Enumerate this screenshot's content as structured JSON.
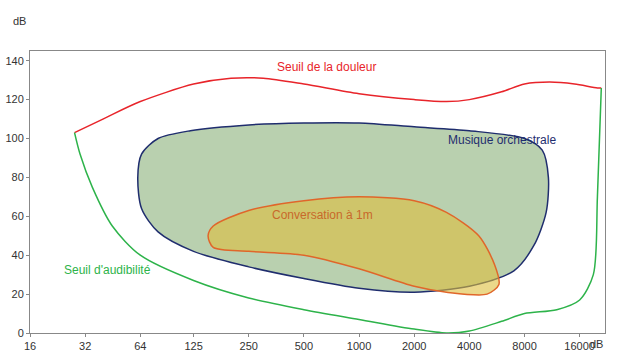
{
  "chart_data": {
    "type": "line",
    "log": "x",
    "grid": false,
    "x_label": "dB",
    "y_label": "dB",
    "xlim": [
      16,
      22000
    ],
    "ylim": [
      0,
      145
    ],
    "xticks": [
      16,
      32,
      64,
      125,
      250,
      500,
      1000,
      2000,
      4000,
      8000,
      16000
    ],
    "yticks": [
      0,
      20,
      40,
      60,
      80,
      100,
      120,
      140
    ],
    "series": [
      {
        "name": "Seuil de la douleur",
        "type": "line",
        "color": "#e8242a",
        "x": [
          28,
          40,
          64,
          125,
          200,
          300,
          500,
          1000,
          2000,
          3000,
          4000,
          6000,
          8000,
          11000,
          15000,
          20000,
          21000
        ],
        "values": [
          103,
          110,
          119,
          128,
          131,
          131,
          128,
          123,
          120,
          119,
          120,
          124,
          128,
          129,
          128,
          126,
          126
        ]
      },
      {
        "name": "Seuil d'audibilité",
        "type": "line",
        "color": "#2db34a",
        "x": [
          28,
          30,
          35,
          45,
          64,
          125,
          250,
          500,
          1000,
          2000,
          3000,
          4000,
          6000,
          8000,
          12000,
          16000,
          19000,
          20000,
          21000
        ],
        "values": [
          103,
          92,
          75,
          55,
          40,
          27,
          18,
          12,
          7,
          2,
          0,
          1,
          6,
          10,
          12,
          17,
          30,
          70,
          126
        ]
      },
      {
        "name": "Musique orchestrale",
        "type": "area",
        "color": "#1f2d6e",
        "x": [
          62,
          65,
          80,
          120,
          250,
          500,
          1000,
          2000,
          4000,
          8000,
          10000,
          10800,
          10500,
          9000,
          7000,
          4000,
          2000,
          1000,
          500,
          250,
          125,
          80,
          65,
          62
        ],
        "values": [
          80,
          92,
          100,
          104,
          107,
          108,
          108,
          106,
          104,
          100,
          94,
          80,
          62,
          45,
          32,
          24,
          21,
          23,
          28,
          34,
          42,
          52,
          64,
          80
        ]
      },
      {
        "name": "Conversation à 1m",
        "type": "area",
        "color": "#e0662a",
        "x": [
          150,
          160,
          250,
          500,
          1000,
          2000,
          3000,
          4500,
          5500,
          5800,
          5000,
          3000,
          2000,
          1000,
          500,
          250,
          160,
          150
        ],
        "values": [
          50,
          55,
          63,
          68,
          70,
          68,
          62,
          50,
          35,
          25,
          20,
          21,
          24,
          33,
          40,
          42,
          44,
          50
        ]
      }
    ]
  }
}
